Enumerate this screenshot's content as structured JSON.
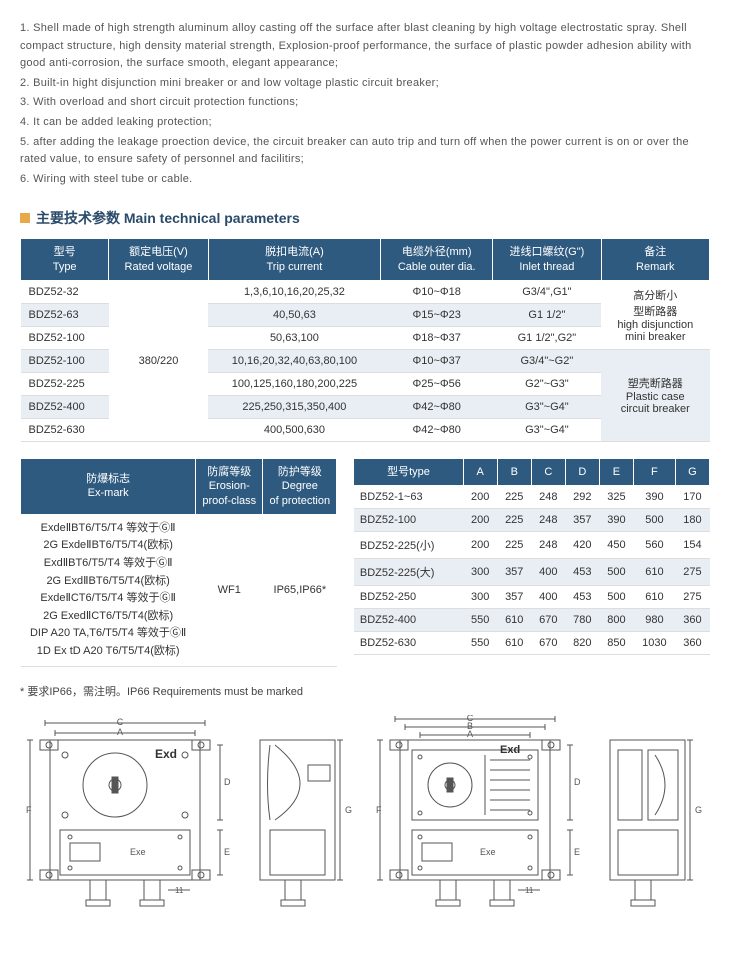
{
  "description": [
    "1. Shell made of high strength aluminum alloy casting off the surface after blast cleaning by high voltage electrostatic spray. Shell compact structure, high density material strength, Explosion-proof performance, the surface of plastic powder adhesion ability with good anti-corrosion, the surface smooth, elegant appearance;",
    "2. Built-in hight disjunction mini breaker or and low voltage plastic circuit breaker;",
    "3. With overload and short circuit protection functions;",
    "4. It can be added leaking protection;",
    "5. after adding the leakage proection device, the circuit breaker can auto trip and turn off when the power current is on or over the rated value, to ensure safety of personnel and facilitirs;",
    "6. Wiring with steel tube or cable."
  ],
  "section_title": "主要技术参数 Main technical parameters",
  "table1": {
    "headers": [
      "型号\nType",
      "额定电压(V)\nRated voltage",
      "脱扣电流(A)\nTrip current",
      "电缆外径(mm)\nCable outer dia.",
      "进线口螺纹(G\")\nInlet thread",
      "备注\nRemark"
    ],
    "rated_voltage": "380/220",
    "rows": [
      {
        "type": "BDZ52-32",
        "trip": "1,3,6,10,16,20,25,32",
        "cable": "Φ10~Φ18",
        "inlet": "G3/4\",G1\""
      },
      {
        "type": "BDZ52-63",
        "trip": "40,50,63",
        "cable": "Φ15~Φ23",
        "inlet": "G1 1/2\""
      },
      {
        "type": "BDZ52-100",
        "trip": "50,63,100",
        "cable": "Φ18~Φ37",
        "inlet": "G1 1/2\",G2\""
      },
      {
        "type": "BDZ52-100",
        "trip": "10,16,20,32,40,63,80,100",
        "cable": "Φ10~Φ37",
        "inlet": "G3/4\"~G2\""
      },
      {
        "type": "BDZ52-225",
        "trip": "100,125,160,180,200,225",
        "cable": "Φ25~Φ56",
        "inlet": "G2\"~G3\""
      },
      {
        "type": "BDZ52-400",
        "trip": "225,250,315,350,400",
        "cable": "Φ42~Φ80",
        "inlet": "G3\"~G4\""
      },
      {
        "type": "BDZ52-630",
        "trip": "400,500,630",
        "cable": "Φ42~Φ80",
        "inlet": "G3\"~G4\""
      }
    ],
    "remark1": "高分断小\n型断路器\nhigh disjunction\nmini breaker",
    "remark2": "塑壳断路器\nPlastic case\ncircuit breaker"
  },
  "table2": {
    "headers": [
      "防爆标志\nEx-mark",
      "防腐等级\nErosion-\nproof-class",
      "防护等级\nDegree\nof protection"
    ],
    "exmarks": [
      "ExdeⅡBT6/T5/T4 等效于ⒼⅡ",
      "2G ExdeⅡBT6/T5/T4(欧标)",
      "ExdⅡBT6/T5/T4 等效于ⒼⅡ",
      "2G ExdⅡBT6/T5/T4(欧标)",
      "ExdeⅡCT6/T5/T4 等效于ⒼⅡ",
      "2G ExedⅡCT6/T5/T4(欧标)",
      "DIP A20 TA,T6/T5/T4 等效于ⒼⅡ",
      "1D Ex tD A20 T6/T5/T4(欧标)"
    ],
    "erosion": "WF1",
    "protection": "IP65,IP66*"
  },
  "table3": {
    "headers": [
      "型号type",
      "A",
      "B",
      "C",
      "D",
      "E",
      "F",
      "G"
    ],
    "rows": [
      [
        "BDZ52-1~63",
        "200",
        "225",
        "248",
        "292",
        "325",
        "390",
        "170"
      ],
      [
        "BDZ52-100",
        "200",
        "225",
        "248",
        "357",
        "390",
        "500",
        "180"
      ],
      [
        "BDZ52-225(小)",
        "200",
        "225",
        "248",
        "420",
        "450",
        "560",
        "154"
      ],
      [
        "BDZ52-225(大)",
        "300",
        "357",
        "400",
        "453",
        "500",
        "610",
        "275"
      ],
      [
        "BDZ52-250",
        "300",
        "357",
        "400",
        "453",
        "500",
        "610",
        "275"
      ],
      [
        "BDZ52-400",
        "550",
        "610",
        "670",
        "780",
        "800",
        "980",
        "360"
      ],
      [
        "BDZ52-630",
        "550",
        "610",
        "670",
        "820",
        "850",
        "1030",
        "360"
      ]
    ]
  },
  "note": "* 要求IP66，需注明。IP66 Requirements must be marked",
  "diag_labels": {
    "exd": "Exd",
    "exe": "Exe",
    "d11": "11"
  }
}
